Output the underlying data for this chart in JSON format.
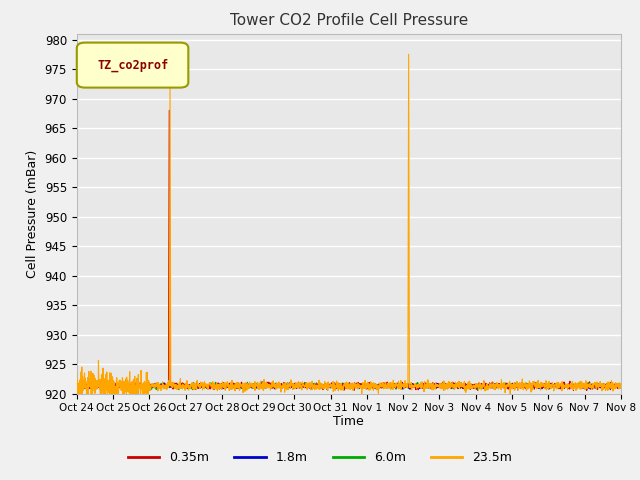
{
  "title": "Tower CO2 Profile Cell Pressure",
  "xlabel": "Time",
  "ylabel": "Cell Pressure (mBar)",
  "ylim": [
    920,
    981
  ],
  "yticks": [
    920,
    925,
    930,
    935,
    940,
    945,
    950,
    955,
    960,
    965,
    970,
    975,
    980
  ],
  "xlim_start": 0,
  "xlim_end": 15,
  "xtick_labels": [
    "Oct 24",
    "Oct 25",
    "Oct 26",
    "Oct 27",
    "Oct 28",
    "Oct 29",
    "Oct 30",
    "Oct 31",
    "Nov 1",
    "Nov 2",
    "Nov 3",
    "Nov 4",
    "Nov 5",
    "Nov 6",
    "Nov 7",
    "Nov 8"
  ],
  "plot_bg": "#e8e8e8",
  "fig_bg": "#f0f0f0",
  "grid_color": "#ffffff",
  "series": [
    {
      "label": "0.35m",
      "color": "#cc0000",
      "linewidth": 0.8
    },
    {
      "label": "1.8m",
      "color": "#0000cc",
      "linewidth": 0.8
    },
    {
      "label": "6.0m",
      "color": "#00aa00",
      "linewidth": 0.8
    },
    {
      "label": "23.5m",
      "color": "#ffa500",
      "linewidth": 0.8
    }
  ],
  "legend_label": "TZ_co2prof",
  "legend_text_color": "#8b0000",
  "legend_bg": "#ffffcc",
  "legend_border": "#999900",
  "base_pressure": 921.3,
  "noise_red": 0.25,
  "noise_blue": 0.18,
  "noise_green": 0.2,
  "noise_orange": 0.35,
  "noise_orange_early": 1.2,
  "red_spike_day": 2.55,
  "red_spike_val": 968.0,
  "orange_spike1_day": 2.57,
  "orange_spike1_val": 972.0,
  "orange_spike2_day": 9.15,
  "orange_spike2_val": 977.5,
  "n_days": 15,
  "points_per_day": 144
}
